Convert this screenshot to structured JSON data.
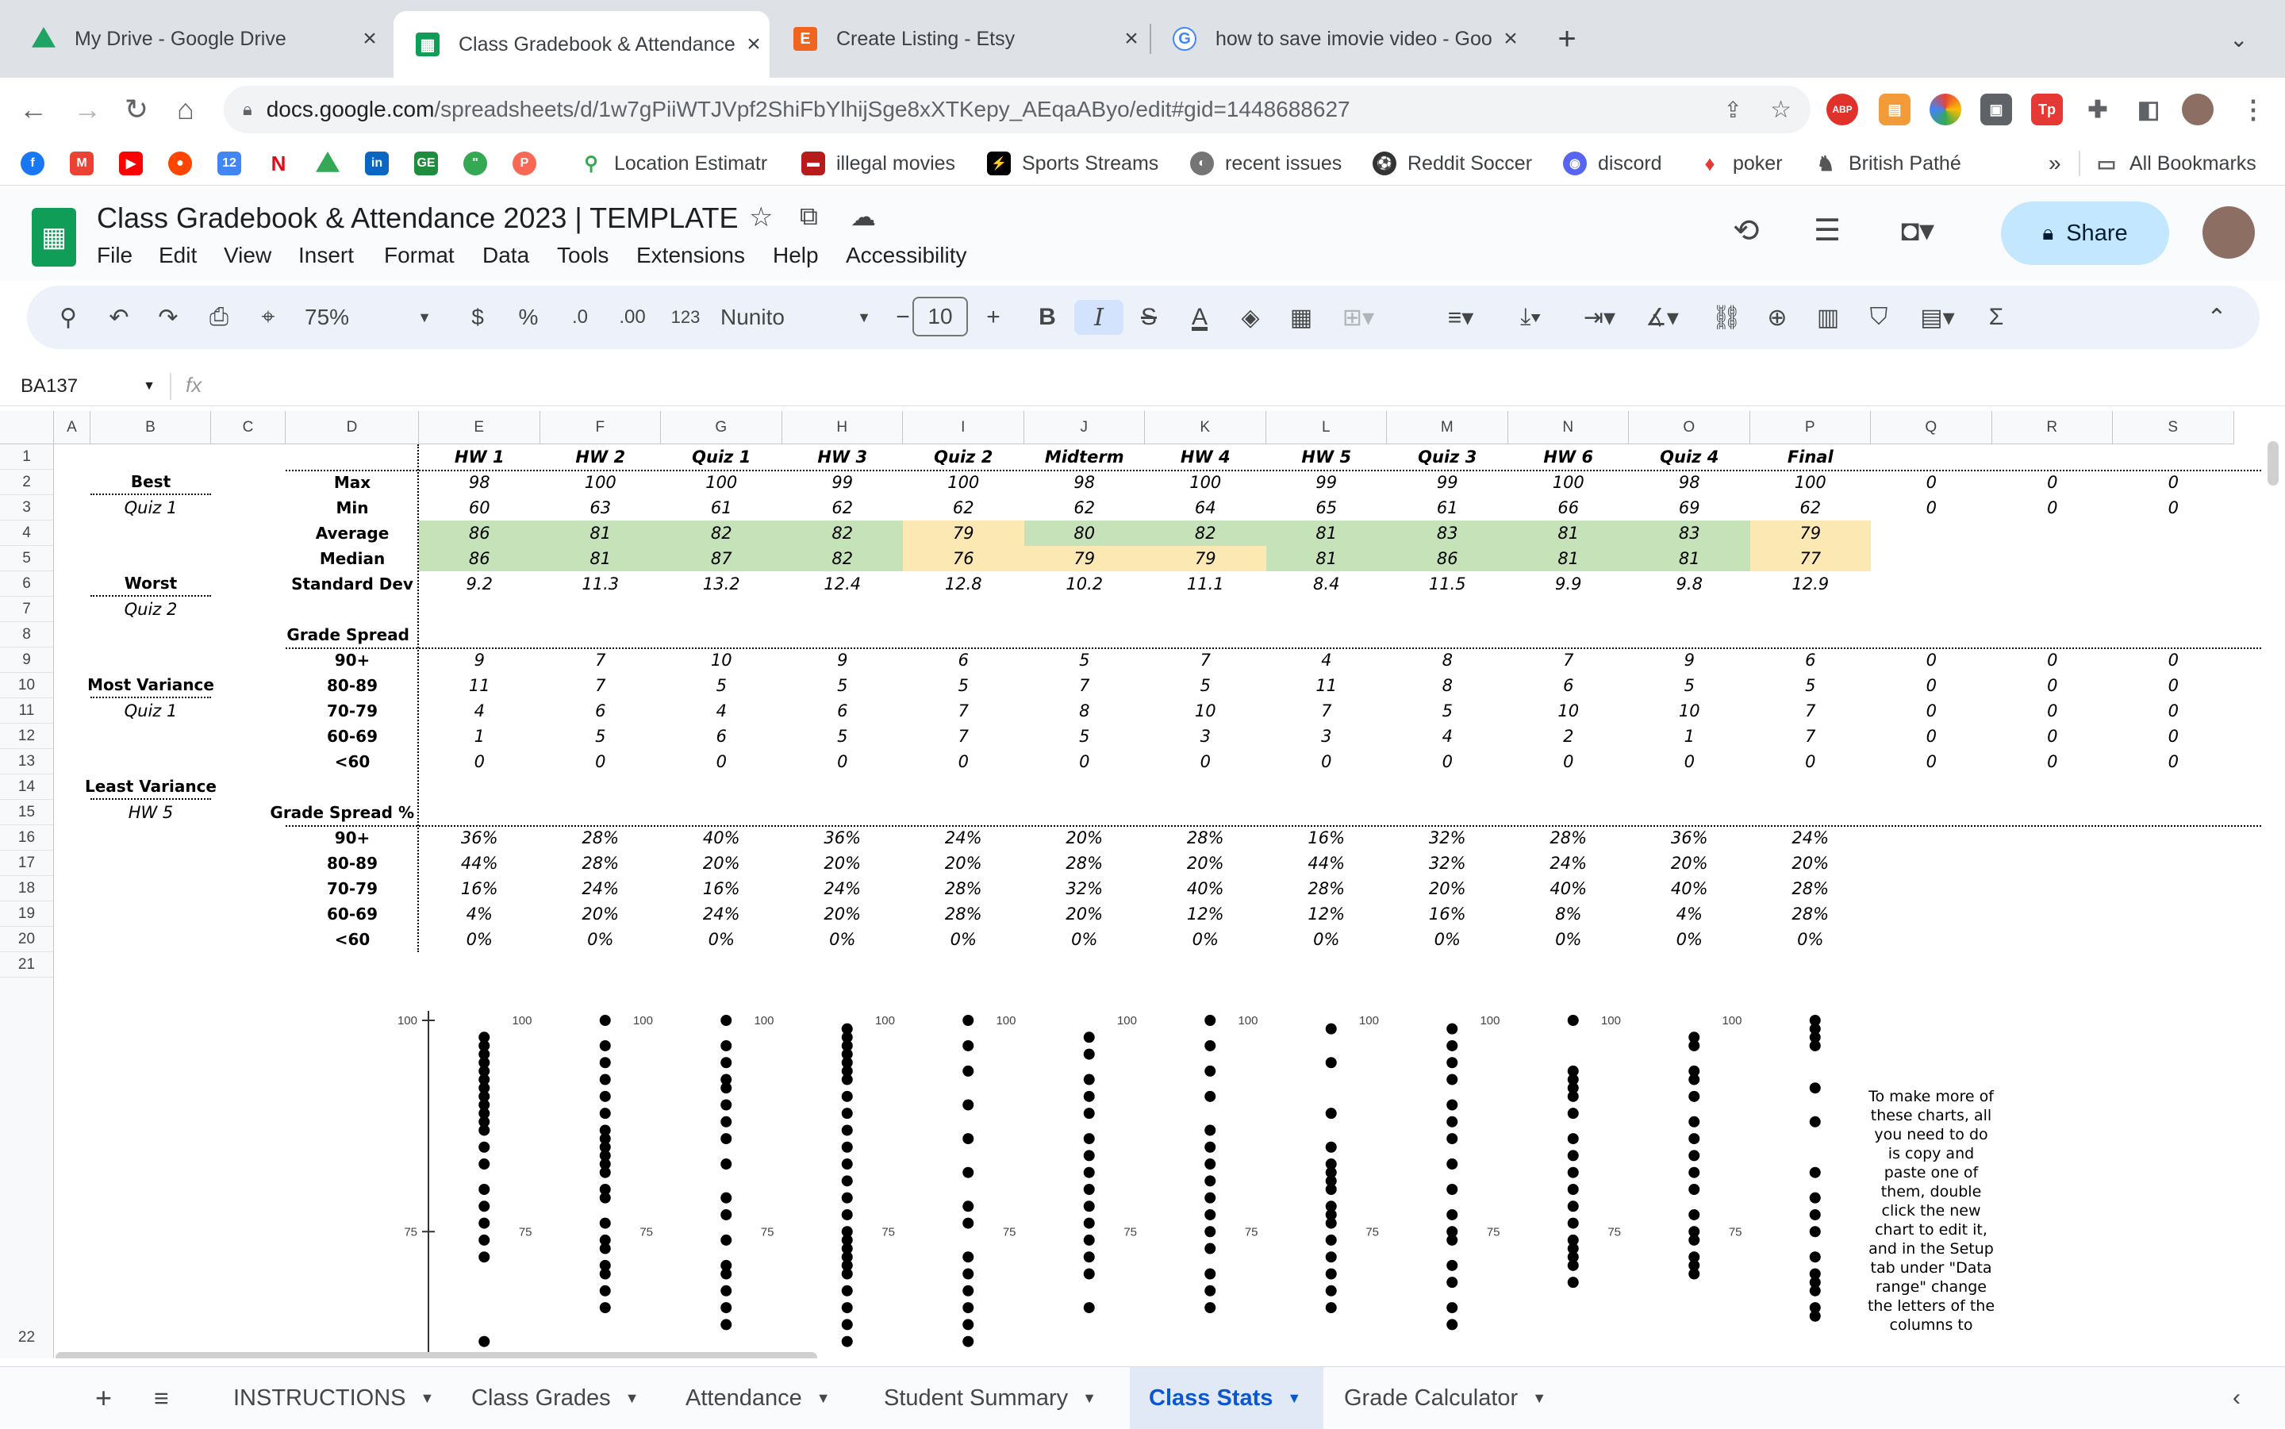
{
  "browser": {
    "tabs": [
      {
        "title": "My Drive - Google Drive",
        "icon": "google-drive-icon",
        "color": "#1fa463"
      },
      {
        "title": "Class Gradebook & Attendance",
        "icon": "google-sheets-icon",
        "color": "#0f9d58"
      },
      {
        "title": "Create Listing - Etsy",
        "icon": "etsy-icon",
        "color": "#f1641e"
      },
      {
        "title": "how to save imovie video - Goo",
        "icon": "google-icon",
        "color": "#4285f4"
      }
    ],
    "new_tab": "+",
    "url_host": "docs.google.com",
    "url_path": "/spreadsheets/d/1w7gPiiWTJVpf2ShiFbYlhijSge8xXTKepy_AEqaAByo/edit#gid=1448688627",
    "bookmarks": [
      "Location Estimatr",
      "illegal movies",
      "Sports Streams",
      "recent issues",
      "Reddit Soccer",
      "discord",
      "poker",
      "British Pathé"
    ],
    "bookmarks_more": "»",
    "all_bookmarks": "All Bookmarks",
    "ext_labels": [
      "ABP",
      "Tp"
    ]
  },
  "doc": {
    "title": "Class Gradebook & Attendance 2023 | TEMPLATE",
    "menu": [
      "File",
      "Edit",
      "View",
      "Insert",
      "Format",
      "Data",
      "Tools",
      "Extensions",
      "Help",
      "Accessibility"
    ],
    "share_label": "Share"
  },
  "toolbar": {
    "zoom": "75%",
    "currency": "$",
    "percent": "%",
    "dec_decrease": ".0",
    "dec_increase": ".00",
    "format_num": "123",
    "font": "Nunito",
    "font_size": "10",
    "bold": "B",
    "italic": "I",
    "text_color": "A"
  },
  "formula_bar": {
    "cell_ref": "BA137",
    "fx": "fx",
    "value": ""
  },
  "grid": {
    "columns": [
      "A",
      "B",
      "C",
      "D",
      "E",
      "F",
      "G",
      "H",
      "I",
      "J",
      "K",
      "L",
      "M",
      "N",
      "O",
      "P",
      "Q",
      "R",
      "S"
    ],
    "rows": [
      "1",
      "2",
      "3",
      "4",
      "5",
      "6",
      "7",
      "8",
      "9",
      "10",
      "11",
      "12",
      "13",
      "14",
      "15",
      "16",
      "17",
      "18",
      "19",
      "20",
      "21",
      "22"
    ],
    "assignments": [
      "HW 1",
      "HW 2",
      "Quiz 1",
      "HW 3",
      "Quiz 2",
      "Midterm",
      "HW 4",
      "HW 5",
      "Quiz 3",
      "HW 6",
      "Quiz 4",
      "Final"
    ],
    "side_labels": {
      "best": "Best",
      "best_val": "Quiz 1",
      "worst": "Worst",
      "worst_val": "Quiz 2",
      "most_var": "Most Variance",
      "most_var_val": "Quiz 1",
      "least_var": "Least Variance",
      "least_var_val": "HW 5"
    },
    "stat_labels": [
      "Max",
      "Min",
      "Average",
      "Median",
      "Standard Dev"
    ],
    "stats": {
      "max": [
        "98",
        "100",
        "100",
        "99",
        "100",
        "98",
        "100",
        "99",
        "99",
        "100",
        "98",
        "100"
      ],
      "min": [
        "60",
        "63",
        "61",
        "62",
        "62",
        "62",
        "64",
        "65",
        "61",
        "66",
        "69",
        "62"
      ],
      "average": [
        "86",
        "81",
        "82",
        "82",
        "79",
        "80",
        "82",
        "81",
        "83",
        "81",
        "83",
        "79"
      ],
      "median": [
        "86",
        "81",
        "87",
        "82",
        "76",
        "79",
        "79",
        "81",
        "86",
        "81",
        "81",
        "77"
      ],
      "stdev": [
        "9.2",
        "11.3",
        "13.2",
        "12.4",
        "12.8",
        "10.2",
        "11.1",
        "8.4",
        "11.5",
        "9.9",
        "9.8",
        "12.9"
      ]
    },
    "extra_zero": "0",
    "grade_spread_title": "Grade Spread",
    "grade_bands": [
      "90+",
      "80-89",
      "70-79",
      "60-69",
      "<60"
    ],
    "grade_spread": [
      [
        "9",
        "7",
        "10",
        "9",
        "6",
        "5",
        "7",
        "4",
        "8",
        "7",
        "9",
        "6"
      ],
      [
        "11",
        "7",
        "5",
        "5",
        "5",
        "7",
        "5",
        "11",
        "8",
        "6",
        "5",
        "5"
      ],
      [
        "4",
        "6",
        "4",
        "6",
        "7",
        "8",
        "10",
        "7",
        "5",
        "10",
        "10",
        "7"
      ],
      [
        "1",
        "5",
        "6",
        "5",
        "7",
        "5",
        "3",
        "3",
        "4",
        "2",
        "1",
        "7"
      ],
      [
        "0",
        "0",
        "0",
        "0",
        "0",
        "0",
        "0",
        "0",
        "0",
        "0",
        "0",
        "0"
      ]
    ],
    "grade_spread_pct_title": "Grade Spread %",
    "grade_spread_pct": [
      [
        "36%",
        "28%",
        "40%",
        "36%",
        "24%",
        "20%",
        "28%",
        "16%",
        "32%",
        "28%",
        "36%",
        "24%"
      ],
      [
        "44%",
        "28%",
        "20%",
        "20%",
        "20%",
        "28%",
        "20%",
        "44%",
        "32%",
        "24%",
        "20%",
        "20%"
      ],
      [
        "16%",
        "24%",
        "16%",
        "24%",
        "28%",
        "32%",
        "40%",
        "28%",
        "20%",
        "40%",
        "40%",
        "28%"
      ],
      [
        "4%",
        "20%",
        "24%",
        "20%",
        "28%",
        "20%",
        "12%",
        "12%",
        "16%",
        "8%",
        "4%",
        "28%"
      ],
      [
        "0%",
        "0%",
        "0%",
        "0%",
        "0%",
        "0%",
        "0%",
        "0%",
        "0%",
        "0%",
        "0%",
        "0%"
      ]
    ],
    "chart_note": "To make more of these charts, all you need to do is copy and paste one of them, double click the new chart to edit it, and in the Setup tab under \"Data range\" change the letters of the columns to"
  },
  "chart_data": {
    "type": "scatter",
    "description_axis": "y",
    "y_ticks": [
      "100",
      "75"
    ],
    "ylim_visible": [
      60,
      100
    ],
    "series": [
      {
        "values": [
          98,
          97,
          96,
          95,
          94,
          93,
          92,
          91,
          90,
          89,
          88,
          87,
          85,
          83,
          80,
          78,
          76,
          74,
          72,
          62
        ]
      },
      {
        "values": [
          100,
          97,
          95,
          93,
          91,
          89,
          87,
          86,
          85,
          84,
          83,
          82,
          80,
          79,
          76,
          74,
          73,
          71,
          70,
          68,
          66
        ]
      },
      {
        "values": [
          100,
          97,
          95,
          93,
          92,
          90,
          88,
          86,
          83,
          79,
          77,
          74,
          71,
          70,
          68,
          66,
          64
        ]
      },
      {
        "values": [
          99,
          98,
          97,
          96,
          95,
          94,
          93,
          91,
          89,
          87,
          85,
          83,
          81,
          79,
          77,
          75,
          74,
          73,
          72,
          71,
          70,
          68,
          66,
          64,
          62
        ]
      },
      {
        "values": [
          100,
          97,
          94,
          90,
          86,
          82,
          78,
          76,
          72,
          70,
          68,
          66,
          64,
          62
        ]
      },
      {
        "values": [
          98,
          96,
          93,
          91,
          89,
          86,
          84,
          82,
          80,
          78,
          76,
          74,
          72,
          70,
          66
        ]
      },
      {
        "values": [
          100,
          97,
          94,
          91,
          87,
          85,
          83,
          81,
          79,
          77,
          75,
          73,
          70,
          68,
          66
        ]
      },
      {
        "values": [
          99,
          95,
          89,
          85,
          83,
          82,
          81,
          80,
          78,
          77,
          76,
          74,
          72,
          70,
          68,
          66
        ]
      },
      {
        "values": [
          99,
          97,
          95,
          93,
          90,
          88,
          86,
          83,
          80,
          77,
          75,
          74,
          71,
          69,
          66,
          64
        ]
      },
      {
        "values": [
          100,
          94,
          93,
          92,
          91,
          89,
          86,
          84,
          82,
          80,
          78,
          76,
          74,
          73,
          72,
          71,
          69
        ]
      },
      {
        "values": [
          98,
          97,
          94,
          93,
          91,
          88,
          86,
          84,
          82,
          80,
          77,
          75,
          74,
          72,
          71,
          70
        ]
      },
      {
        "values": [
          100,
          99,
          98,
          97,
          92,
          88,
          82,
          79,
          77,
          75,
          72,
          70,
          69,
          68,
          66,
          65
        ]
      }
    ]
  },
  "sheet_tabs": [
    "INSTRUCTIONS",
    "Class Grades",
    "Attendance",
    "Student Summary",
    "Class Stats",
    "Grade Calculator"
  ],
  "active_sheet": "Class Stats"
}
